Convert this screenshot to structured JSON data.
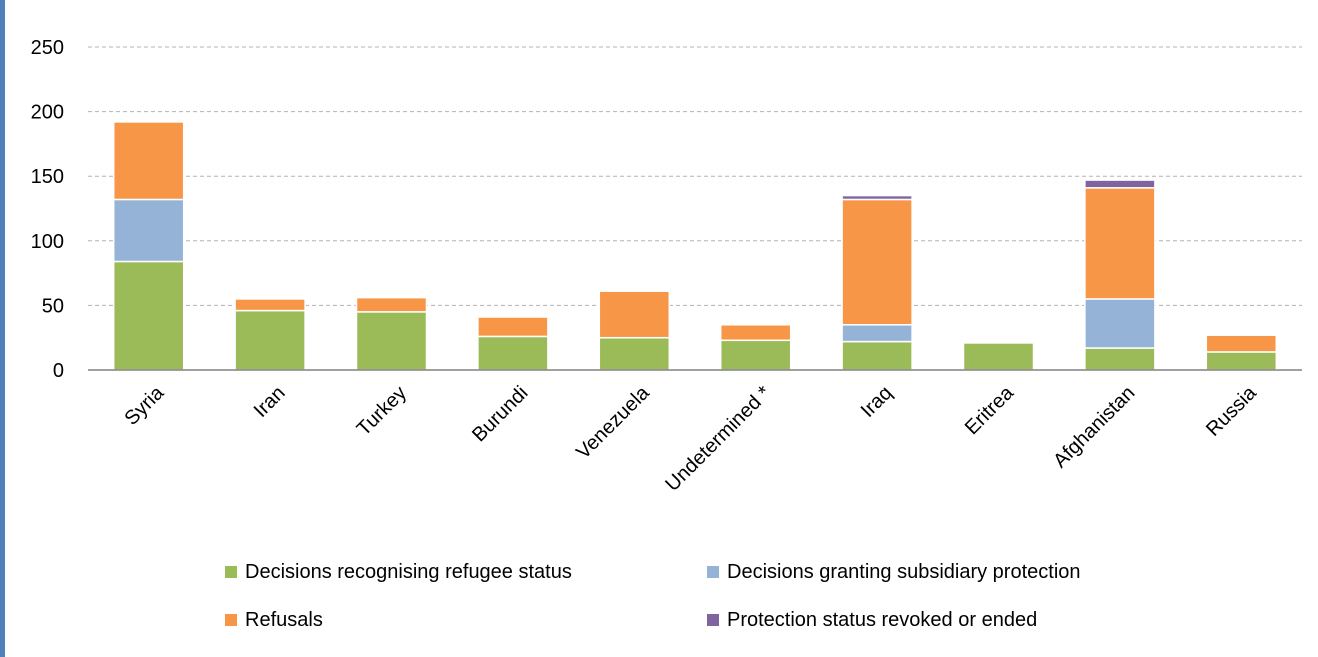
{
  "chart_data": {
    "type": "bar",
    "stacked": true,
    "categories": [
      "Syria",
      "Iran",
      "Turkey",
      "Burundi",
      "Venezuela",
      "Undetermined *",
      "Iraq",
      "Eritrea",
      "Afghanistan",
      "Russia"
    ],
    "series": [
      {
        "name": "Decisions recognising refugee status",
        "color": "#9bbb59",
        "values": [
          84,
          46,
          45,
          26,
          25,
          23,
          22,
          21,
          17,
          14
        ]
      },
      {
        "name": "Decisions granting subsidiary protection",
        "color": "#95b3d7",
        "values": [
          48,
          0,
          0,
          0,
          0,
          0,
          13,
          0,
          38,
          0
        ]
      },
      {
        "name": "Refusals",
        "color": "#f79646",
        "values": [
          60,
          9,
          11,
          15,
          36,
          12,
          97,
          1,
          86,
          13
        ]
      },
      {
        "name": "Protection status revoked or ended",
        "color": "#8064a2",
        "values": [
          0,
          0,
          0,
          0,
          0,
          0,
          3,
          0,
          6,
          1
        ]
      }
    ],
    "yticks": [
      0,
      50,
      100,
      150,
      200,
      250
    ],
    "ylim": [
      0,
      250
    ],
    "grid": true,
    "legend_position": "bottom",
    "title": "",
    "xlabel": "",
    "ylabel": ""
  }
}
